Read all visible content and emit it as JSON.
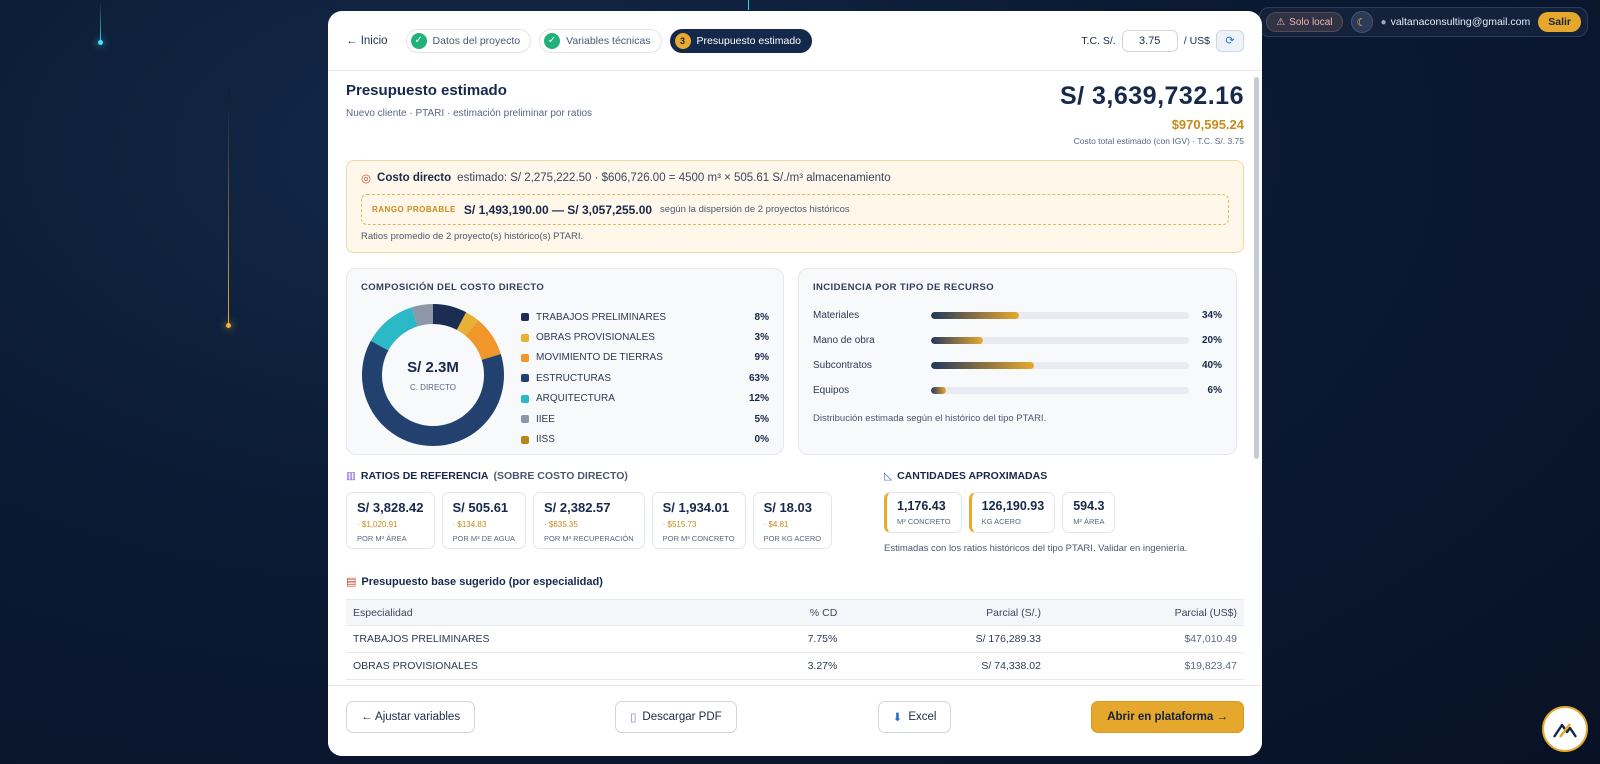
{
  "topbar": {
    "local_label": "Solo local",
    "user_email": "valtanaconsulting@gmail.com",
    "logout_label": "Salir"
  },
  "header": {
    "back_label": "← Inicio",
    "steps": [
      {
        "label": "Datos del proyecto",
        "state": "done"
      },
      {
        "label": "Variables técnicas",
        "state": "done"
      },
      {
        "label": "Presupuesto estimado",
        "state": "active",
        "number": "3"
      }
    ],
    "tc_label": "T.C. S/.",
    "tc_value": "3.75",
    "tc_suffix": "/ US$"
  },
  "summary": {
    "title": "Presupuesto estimado",
    "subtitle": "Nuevo cliente · PTARI · estimación preliminar por ratios",
    "total_pen": "S/ 3,639,732.16",
    "total_usd": "$970,595.24",
    "total_note": "Costo total estimado (con IGV) · T.C. S/. 3.75"
  },
  "direct_cost": {
    "label": "Costo directo",
    "text": "estimado: S/ 2,275,222.50 · $606,726.00  =  4500 m³ × 505.61 S/./m³ almacenamiento",
    "range_label": "RANGO PROBABLE",
    "range_value": "S/ 1,493,190.00 — S/ 3,057,255.00",
    "range_desc": "según la dispersión de 2 proyectos históricos",
    "footnote": "Ratios promedio de 2 proyecto(s) histórico(s) PTARI."
  },
  "composition": {
    "title": "COMPOSICIÓN DEL COSTO DIRECTO",
    "center_value": "S/ 2.3M",
    "center_label": "C. DIRECTO",
    "items": [
      {
        "label": "TRABAJOS PRELIMINARES",
        "pct": "8%",
        "value": 7.75,
        "color": "#1b2d52"
      },
      {
        "label": "OBRAS PROVISIONALES",
        "pct": "3%",
        "value": 3.27,
        "color": "#e8b133"
      },
      {
        "label": "MOVIMIENTO DE TIERRAS",
        "pct": "9%",
        "value": 9.2,
        "color": "#f0962a"
      },
      {
        "label": "ESTRUCTURAS",
        "pct": "63%",
        "value": 62.8,
        "color": "#22416f"
      },
      {
        "label": "ARQUITECTURA",
        "pct": "12%",
        "value": 12.1,
        "color": "#2bb8c7"
      },
      {
        "label": "IIEE",
        "pct": "5%",
        "value": 4.9,
        "color": "#8d97a8"
      },
      {
        "label": "IISS",
        "pct": "0%",
        "value": 0.0,
        "color": "#b5871f"
      }
    ]
  },
  "incidence": {
    "title": "INCIDENCIA POR TIPO DE RECURSO",
    "rows": [
      {
        "label": "Materiales",
        "pct": "34%",
        "value": 34
      },
      {
        "label": "Mano de obra",
        "pct": "20%",
        "value": 20
      },
      {
        "label": "Subcontratos",
        "pct": "40%",
        "value": 40
      },
      {
        "label": "Equipos",
        "pct": "6%",
        "value": 6
      }
    ],
    "footnote": "Distribución estimada según el histórico del tipo PTARI."
  },
  "ratios": {
    "title": "RATIOS DE REFERENCIA",
    "title_suffix": "(SOBRE COSTO DIRECTO)",
    "cards": [
      {
        "value": "S/ 3,828.42",
        "usd": "· $1,020.91",
        "label": "POR M² ÁREA"
      },
      {
        "value": "S/ 505.61",
        "usd": "· $134.83",
        "label": "POR M³ DE AGUA"
      },
      {
        "value": "S/ 2,382.57",
        "usd": "· $635.35",
        "label": "POR M³ RECUPERACIÓN"
      },
      {
        "value": "S/ 1,934.01",
        "usd": "· $515.73",
        "label": "POR M³ CONCRETO"
      },
      {
        "value": "S/ 18.03",
        "usd": "· $4.81",
        "label": "POR KG ACERO"
      }
    ]
  },
  "quantities": {
    "title": "CANTIDADES APROXIMADAS",
    "cards": [
      {
        "value": "1,176.43",
        "label": "M³ CONCRETO"
      },
      {
        "value": "126,190.93",
        "label": "KG ACERO"
      },
      {
        "value": "594.3",
        "label": "M² ÁREA"
      }
    ],
    "footnote": "Estimadas con los ratios históricos del tipo PTARI. Validar en ingeniería."
  },
  "budget_table": {
    "title": "Presupuesto base sugerido (por especialidad)",
    "headers": [
      "Especialidad",
      "% CD",
      "Parcial (S/.)",
      "Parcial (US$)"
    ],
    "rows": [
      [
        "TRABAJOS PRELIMINARES",
        "7.75%",
        "S/ 176,289.33",
        "$47,010.49"
      ],
      [
        "OBRAS PROVISIONALES",
        "3.27%",
        "S/ 74,338.02",
        "$19,823.47"
      ]
    ]
  },
  "footer": {
    "adjust_label": "← Ajustar variables",
    "pdf_label": "Descargar PDF",
    "excel_label": "Excel",
    "open_label": "Abrir en plataforma →"
  }
}
